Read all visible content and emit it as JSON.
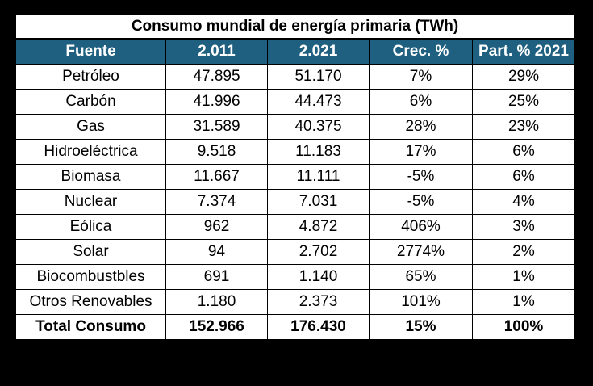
{
  "table": {
    "title": "Consumo mundial de energía primaria (TWh)",
    "headers": [
      "Fuente",
      "2.011",
      "2.021",
      "Crec. %",
      "Part. % 2021"
    ],
    "rows": [
      [
        "Petróleo",
        "47.895",
        "51.170",
        "7%",
        "29%"
      ],
      [
        "Carbón",
        "41.996",
        "44.473",
        "6%",
        "25%"
      ],
      [
        "Gas",
        "31.589",
        "40.375",
        "28%",
        "23%"
      ],
      [
        "Hidroeléctrica",
        "9.518",
        "11.183",
        "17%",
        "6%"
      ],
      [
        "Biomasa",
        "11.667",
        "11.111",
        "-5%",
        "6%"
      ],
      [
        "Nuclear",
        "7.374",
        "7.031",
        "-5%",
        "4%"
      ],
      [
        "Eólica",
        "962",
        "4.872",
        "406%",
        "3%"
      ],
      [
        "Solar",
        "94",
        "2.702",
        "2774%",
        "2%"
      ],
      [
        "Biocombustbles",
        "691",
        "1.140",
        "65%",
        "1%"
      ],
      [
        "Otros Renovables",
        "1.180",
        "2.373",
        "101%",
        "1%"
      ]
    ],
    "total": [
      "Total Consumo",
      "152.966",
      "176.430",
      "15%",
      "100%"
    ]
  }
}
